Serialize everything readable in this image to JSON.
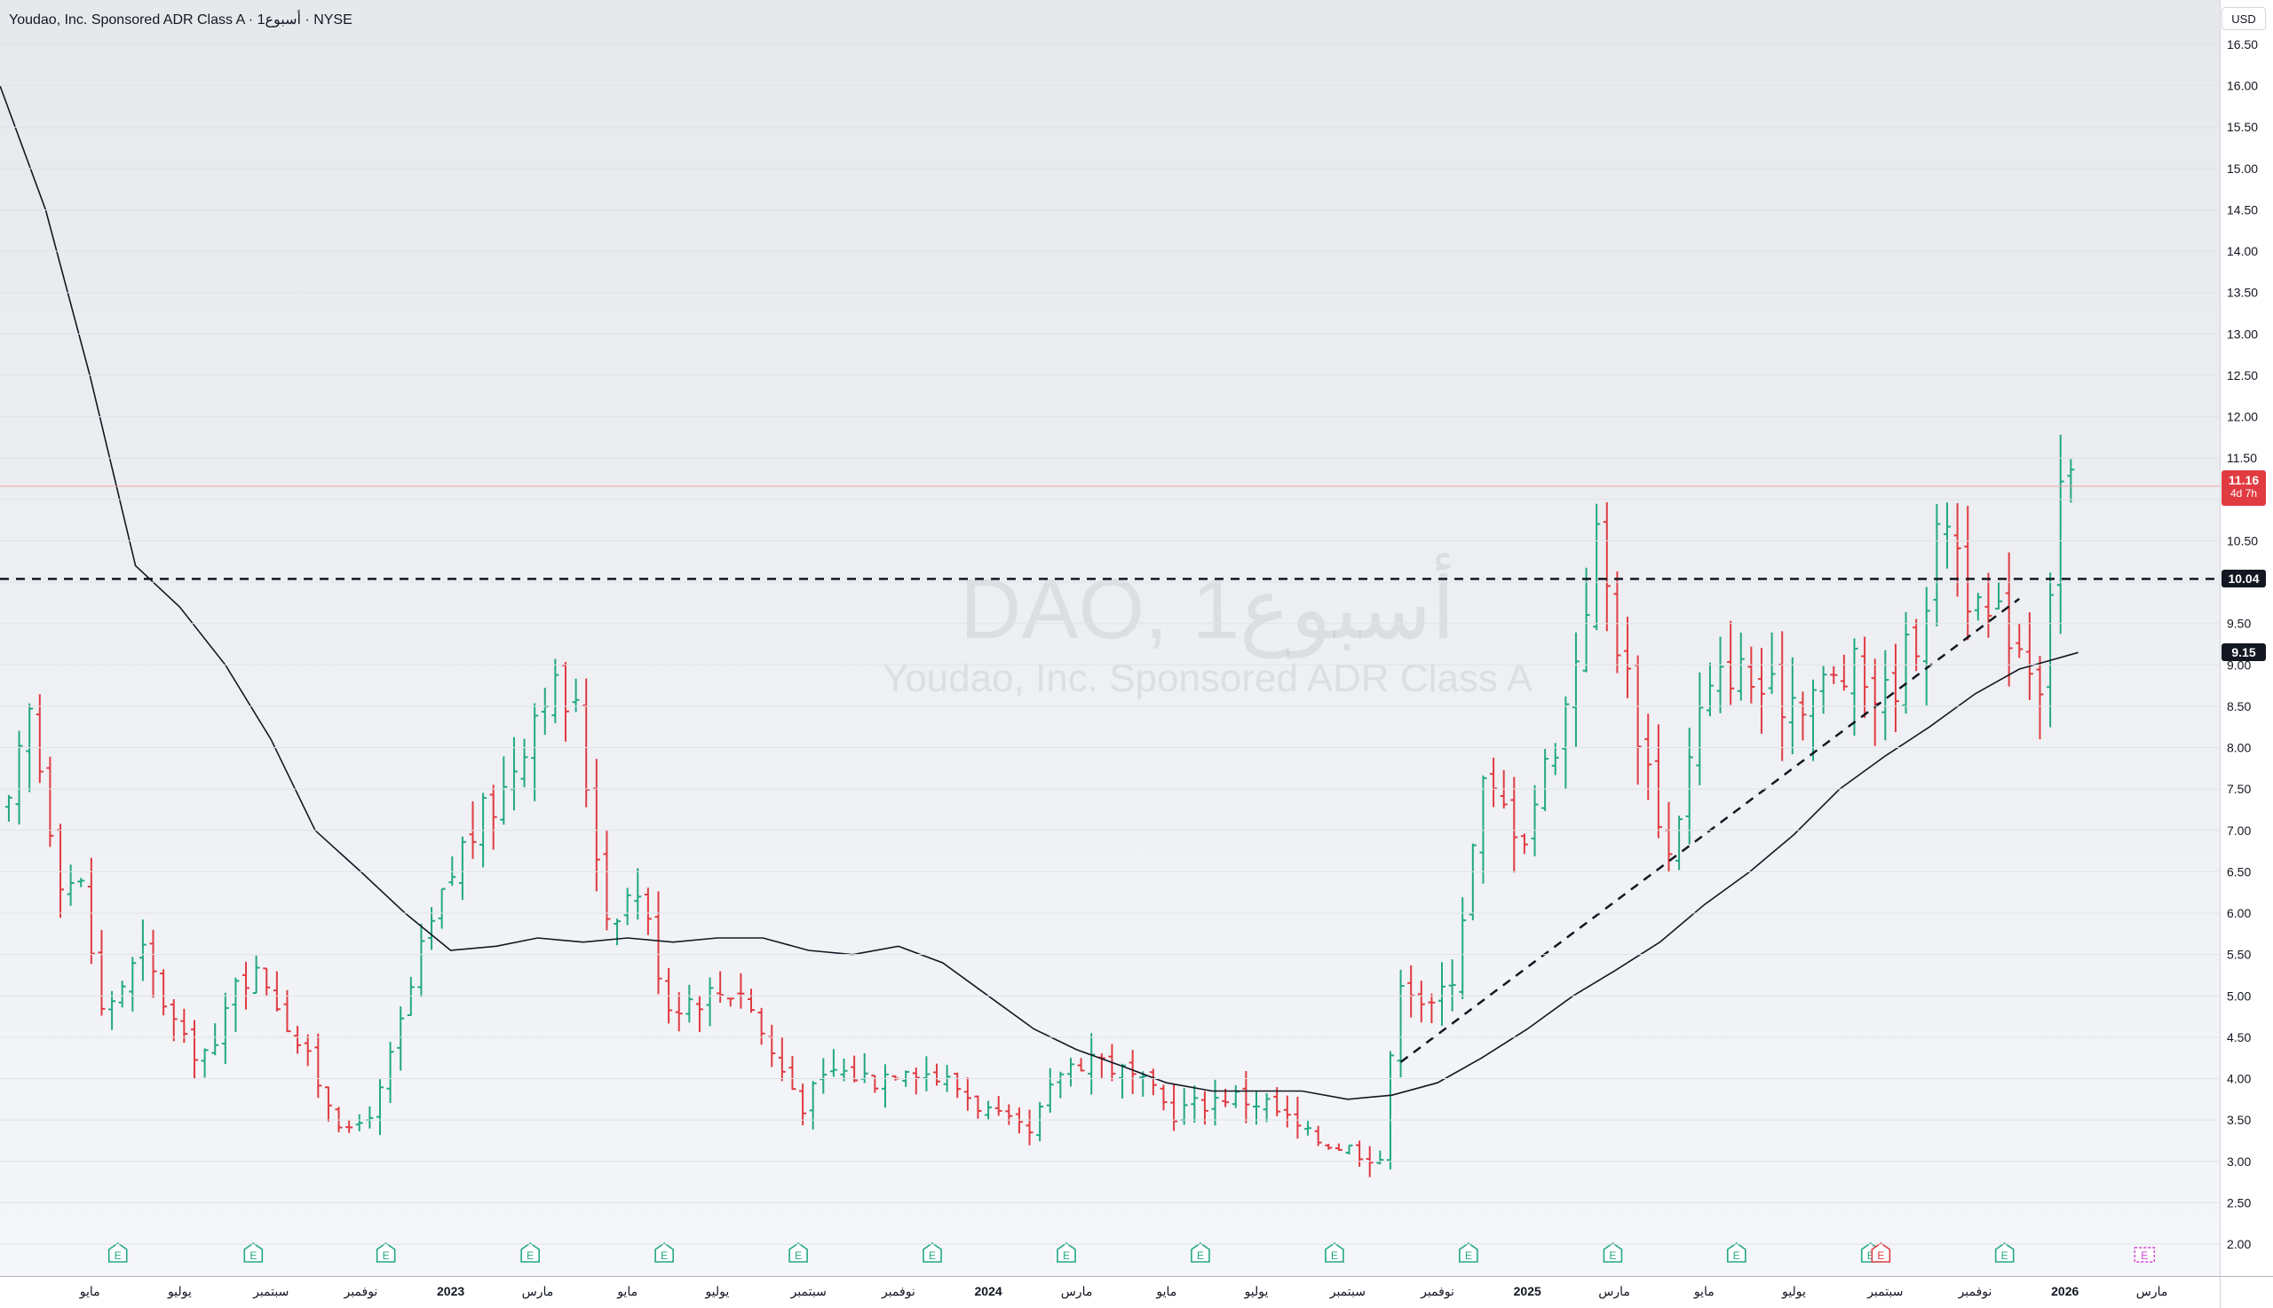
{
  "header": {
    "title": "Youdao, Inc. Sponsored ADR Class A · 1أسبوع · NYSE"
  },
  "watermark": {
    "symbol": "DAO, 1أسبوع",
    "name": "Youdao, Inc. Sponsored ADR Class A"
  },
  "price_axis": {
    "currency": "USD",
    "last_price": "11.16",
    "countdown": "4d 7h",
    "resistance_label": "10.04",
    "ma_label": "9.15"
  },
  "colors": {
    "up": "#22a884",
    "down": "#e03b41",
    "ma": "#131722",
    "earnings": "#22a884",
    "earnings_next": "#e03b41",
    "dividend": "#d442d4"
  },
  "chart_data": {
    "type": "ohlc",
    "interval": "1 week",
    "ylim": [
      2.0,
      16.5
    ],
    "y_ticks": [
      "2.00",
      "2.50",
      "3.00",
      "3.50",
      "4.00",
      "4.50",
      "5.00",
      "5.50",
      "6.00",
      "6.50",
      "7.00",
      "7.50",
      "8.00",
      "8.50",
      "9.00",
      "9.50",
      "10.00",
      "10.50",
      "11.00",
      "11.50",
      "12.00",
      "12.50",
      "13.00",
      "13.50",
      "14.00",
      "14.50",
      "15.00",
      "15.50",
      "16.00",
      "16.50"
    ],
    "x_ticks": [
      {
        "label": "مايو",
        "date": "2022-05-01"
      },
      {
        "label": "يوليو",
        "date": "2022-07-01"
      },
      {
        "label": "سبتمبر",
        "date": "2022-09-01"
      },
      {
        "label": "نوفمبر",
        "date": "2022-11-01"
      },
      {
        "label": "2023",
        "date": "2023-01-01"
      },
      {
        "label": "مارس",
        "date": "2023-03-01"
      },
      {
        "label": "مايو",
        "date": "2023-05-01"
      },
      {
        "label": "يوليو",
        "date": "2023-07-01"
      },
      {
        "label": "سبتمبر",
        "date": "2023-09-01"
      },
      {
        "label": "نوفمبر",
        "date": "2023-11-01"
      },
      {
        "label": "2024",
        "date": "2024-01-01"
      },
      {
        "label": "مارس",
        "date": "2024-03-01"
      },
      {
        "label": "مايو",
        "date": "2024-05-01"
      },
      {
        "label": "يوليو",
        "date": "2024-07-01"
      },
      {
        "label": "سبتمبر",
        "date": "2024-09-01"
      },
      {
        "label": "نوفمبر",
        "date": "2024-11-01"
      },
      {
        "label": "2025",
        "date": "2025-01-01"
      },
      {
        "label": "مارس",
        "date": "2025-03-01"
      },
      {
        "label": "مايو",
        "date": "2025-05-01"
      },
      {
        "label": "يوليو",
        "date": "2025-07-01"
      },
      {
        "label": "سبتمبر",
        "date": "2025-09-01"
      },
      {
        "label": "نوفمبر",
        "date": "2025-11-01"
      },
      {
        "label": "2026",
        "date": "2026-01-01"
      },
      {
        "label": "مارس",
        "date": "2026-03-01"
      }
    ],
    "x_range": [
      "2022-03-01",
      "2026-04-01"
    ],
    "keypoints": [
      [
        "2022-03-07",
        7.2
      ],
      [
        "2022-03-21",
        8.4
      ],
      [
        "2022-04-11",
        6.5
      ],
      [
        "2022-04-25",
        6.3
      ],
      [
        "2022-05-09",
        4.8
      ],
      [
        "2022-06-06",
        5.5
      ],
      [
        "2022-07-04",
        4.4
      ],
      [
        "2022-07-25",
        4.3
      ],
      [
        "2022-08-08",
        5.3
      ],
      [
        "2022-08-29",
        5.2
      ],
      [
        "2022-09-26",
        4.2
      ],
      [
        "2022-10-24",
        3.3
      ],
      [
        "2022-11-14",
        3.8
      ],
      [
        "2022-12-12",
        5.5
      ],
      [
        "2023-01-09",
        6.8
      ],
      [
        "2023-02-06",
        7.5
      ],
      [
        "2023-03-06",
        8.8
      ],
      [
        "2023-03-27",
        8.4
      ],
      [
        "2023-04-17",
        6.0
      ],
      [
        "2023-05-08",
        6.3
      ],
      [
        "2023-05-29",
        4.9
      ],
      [
        "2023-06-19",
        5.0
      ],
      [
        "2023-07-17",
        5.1
      ],
      [
        "2023-08-07",
        4.3
      ],
      [
        "2023-08-28",
        3.7
      ],
      [
        "2023-09-18",
        4.1
      ],
      [
        "2023-10-16",
        4.0
      ],
      [
        "2023-11-06",
        4.2
      ],
      [
        "2023-12-11",
        3.9
      ],
      [
        "2024-01-08",
        3.5
      ],
      [
        "2024-01-29",
        3.3
      ],
      [
        "2024-02-19",
        4.1
      ],
      [
        "2024-03-11",
        4.3
      ],
      [
        "2024-04-08",
        4.0
      ],
      [
        "2024-05-06",
        3.6
      ],
      [
        "2024-06-10",
        3.8
      ],
      [
        "2024-07-08",
        3.7
      ],
      [
        "2024-08-05",
        3.3
      ],
      [
        "2024-08-26",
        3.2
      ],
      [
        "2024-09-23",
        3.05
      ],
      [
        "2024-10-07",
        5.3
      ],
      [
        "2024-10-28",
        4.8
      ],
      [
        "2024-11-11",
        5.3
      ],
      [
        "2024-12-02",
        7.5
      ],
      [
        "2024-12-30",
        7.0
      ],
      [
        "2025-01-27",
        8.5
      ],
      [
        "2025-02-17",
        10.5
      ],
      [
        "2025-03-10",
        8.8
      ],
      [
        "2025-04-07",
        6.7
      ],
      [
        "2025-04-28",
        8.4
      ],
      [
        "2025-05-19",
        9.0
      ],
      [
        "2025-06-16",
        8.6
      ],
      [
        "2025-07-14",
        8.7
      ],
      [
        "2025-08-11",
        8.9
      ],
      [
        "2025-09-01",
        8.6
      ],
      [
        "2025-09-22",
        9.4
      ],
      [
        "2025-10-13",
        10.9
      ],
      [
        "2025-11-03",
        9.5
      ],
      [
        "2025-11-24",
        9.5
      ],
      [
        "2025-12-15",
        8.9
      ],
      [
        "2025-12-29",
        11.2
      ],
      [
        "2026-01-05",
        11.16
      ]
    ],
    "moving_average": [
      [
        "2022-03-01",
        16.0
      ],
      [
        "2022-04-01",
        14.5
      ],
      [
        "2022-05-01",
        12.5
      ],
      [
        "2022-06-01",
        10.2
      ],
      [
        "2022-07-01",
        9.7
      ],
      [
        "2022-08-01",
        9.0
      ],
      [
        "2022-09-01",
        8.1
      ],
      [
        "2022-10-01",
        7.0
      ],
      [
        "2022-11-01",
        6.5
      ],
      [
        "2022-12-01",
        6.0
      ],
      [
        "2023-01-01",
        5.55
      ],
      [
        "2023-02-01",
        5.6
      ],
      [
        "2023-03-01",
        5.7
      ],
      [
        "2023-04-01",
        5.65
      ],
      [
        "2023-05-01",
        5.7
      ],
      [
        "2023-06-01",
        5.65
      ],
      [
        "2023-07-01",
        5.7
      ],
      [
        "2023-08-01",
        5.7
      ],
      [
        "2023-09-01",
        5.55
      ],
      [
        "2023-10-01",
        5.5
      ],
      [
        "2023-11-01",
        5.6
      ],
      [
        "2023-12-01",
        5.4
      ],
      [
        "2024-01-01",
        5.0
      ],
      [
        "2024-02-01",
        4.6
      ],
      [
        "2024-03-01",
        4.35
      ],
      [
        "2024-04-01",
        4.15
      ],
      [
        "2024-05-01",
        3.95
      ],
      [
        "2024-06-01",
        3.85
      ],
      [
        "2024-07-01",
        3.85
      ],
      [
        "2024-08-01",
        3.85
      ],
      [
        "2024-09-01",
        3.75
      ],
      [
        "2024-10-01",
        3.8
      ],
      [
        "2024-11-01",
        3.95
      ],
      [
        "2024-12-01",
        4.25
      ],
      [
        "2025-01-01",
        4.6
      ],
      [
        "2025-02-01",
        5.0
      ],
      [
        "2025-03-01",
        5.3
      ],
      [
        "2025-04-01",
        5.65
      ],
      [
        "2025-05-01",
        6.1
      ],
      [
        "2025-06-01",
        6.5
      ],
      [
        "2025-07-01",
        6.95
      ],
      [
        "2025-08-01",
        7.5
      ],
      [
        "2025-09-01",
        7.9
      ],
      [
        "2025-10-01",
        8.25
      ],
      [
        "2025-11-01",
        8.65
      ],
      [
        "2025-12-01",
        8.95
      ],
      [
        "2026-01-10",
        9.15
      ]
    ],
    "resistance_level": 10.04,
    "trendline": [
      [
        "2024-10-07",
        4.2
      ],
      [
        "2025-12-01",
        9.8
      ]
    ],
    "earnings_dates": [
      "2022-05-20",
      "2022-08-20",
      "2022-11-18",
      "2023-02-24",
      "2023-05-26",
      "2023-08-25",
      "2023-11-24",
      "2024-02-23",
      "2024-05-24",
      "2024-08-23",
      "2024-11-22",
      "2025-02-28",
      "2025-05-23",
      "2025-08-22",
      "2025-11-21"
    ],
    "upcoming_earnings_date": "2025-08-29",
    "dividend_date": "2026-02-24",
    "last_price": 11.16
  }
}
